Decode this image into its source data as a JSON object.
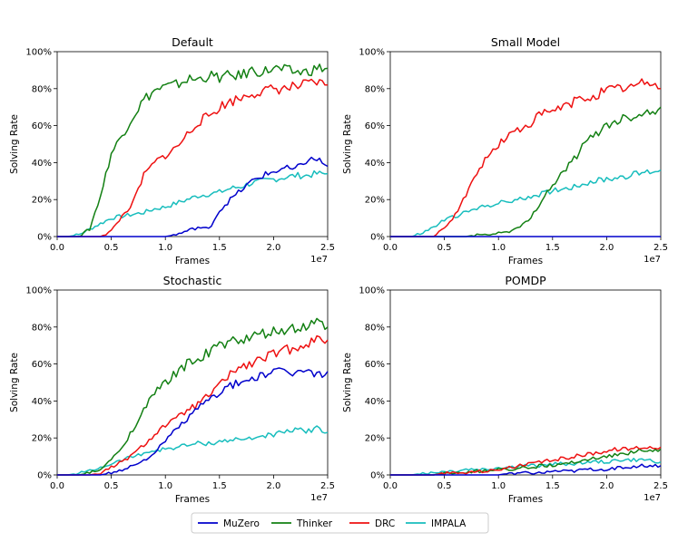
{
  "chart_data": [
    {
      "type": "line",
      "title": "Default",
      "xlabel": "Frames",
      "ylabel": "Solving Rate",
      "x_offset_label": "1e7",
      "xlim": [
        0.0,
        2.5
      ],
      "ylim": [
        0,
        100
      ],
      "xticks": [
        "0.0",
        "0.5",
        "1.0",
        "1.5",
        "2.0",
        "2.5"
      ],
      "yticks": [
        "0%",
        "20%",
        "40%",
        "60%",
        "80%",
        "100%"
      ],
      "x": [
        0.0,
        0.1,
        0.2,
        0.3,
        0.4,
        0.5,
        0.6,
        0.7,
        0.8,
        0.9,
        1.0,
        1.1,
        1.2,
        1.3,
        1.4,
        1.5,
        1.6,
        1.7,
        1.8,
        1.9,
        2.0,
        2.1,
        2.2,
        2.3,
        2.4,
        2.5
      ],
      "series": [
        {
          "name": "MuZero",
          "values": [
            0,
            0,
            0,
            0,
            0,
            0,
            0,
            0,
            0,
            0,
            0,
            1,
            3,
            5,
            4,
            14,
            20,
            25,
            30,
            33,
            35,
            37,
            36,
            41,
            42,
            38
          ]
        },
        {
          "name": "Thinker",
          "values": [
            0,
            0,
            0,
            4,
            22,
            45,
            55,
            65,
            74,
            79,
            81,
            82,
            85,
            85,
            87,
            86,
            87,
            87,
            90,
            89,
            91,
            90,
            89,
            89,
            91,
            91
          ]
        },
        {
          "name": "DRC",
          "values": [
            0,
            0,
            0,
            0,
            0,
            3,
            11,
            18,
            33,
            40,
            44,
            48,
            55,
            62,
            65,
            70,
            73,
            75,
            78,
            78,
            80,
            80,
            81,
            82,
            83,
            82
          ]
        },
        {
          "name": "IMPALA",
          "values": [
            0,
            0,
            1,
            4,
            7,
            10,
            11,
            12,
            13,
            15,
            16,
            18,
            20,
            22,
            23,
            24,
            26,
            27,
            29,
            30,
            31,
            32,
            33,
            33,
            34,
            34
          ]
        }
      ]
    },
    {
      "type": "line",
      "title": "Small Model",
      "xlabel": "Frames",
      "ylabel": "Solving Rate",
      "x_offset_label": "1e7",
      "xlim": [
        0.0,
        2.5
      ],
      "ylim": [
        0,
        100
      ],
      "xticks": [
        "0.0",
        "0.5",
        "1.0",
        "1.5",
        "2.0",
        "2.5"
      ],
      "yticks": [
        "0%",
        "20%",
        "40%",
        "60%",
        "80%",
        "100%"
      ],
      "x": [
        0.0,
        0.1,
        0.2,
        0.3,
        0.4,
        0.5,
        0.6,
        0.7,
        0.8,
        0.9,
        1.0,
        1.1,
        1.2,
        1.3,
        1.4,
        1.5,
        1.6,
        1.7,
        1.8,
        1.9,
        2.0,
        2.1,
        2.2,
        2.3,
        2.4,
        2.5
      ],
      "series": [
        {
          "name": "MuZero",
          "values": [
            0,
            0,
            0,
            0,
            0,
            0,
            0,
            0,
            0,
            0,
            0,
            0,
            0,
            0,
            0,
            0,
            0,
            0,
            0,
            0,
            0,
            0,
            0,
            0,
            0,
            0
          ]
        },
        {
          "name": "Thinker",
          "values": [
            0,
            0,
            0,
            0,
            0,
            0,
            0,
            0,
            1,
            1,
            2,
            3,
            5,
            10,
            20,
            28,
            35,
            42,
            50,
            56,
            60,
            63,
            65,
            66,
            68,
            70
          ]
        },
        {
          "name": "DRC",
          "values": [
            0,
            0,
            0,
            0,
            0,
            4,
            12,
            22,
            35,
            43,
            50,
            55,
            58,
            62,
            66,
            68,
            70,
            73,
            75,
            77,
            79,
            80,
            81,
            82,
            84,
            80
          ]
        },
        {
          "name": "IMPALA",
          "values": [
            0,
            0,
            0,
            2,
            5,
            9,
            11,
            13,
            15,
            17,
            18,
            19,
            20,
            22,
            23,
            25,
            26,
            27,
            29,
            30,
            31,
            32,
            33,
            34,
            35,
            36
          ]
        }
      ]
    },
    {
      "type": "line",
      "title": "Stochastic",
      "xlabel": "Frames",
      "ylabel": "Solving Rate",
      "x_offset_label": "1e7",
      "xlim": [
        0.0,
        2.5
      ],
      "ylim": [
        0,
        100
      ],
      "xticks": [
        "0.0",
        "0.5",
        "1.0",
        "1.5",
        "2.0",
        "2.5"
      ],
      "yticks": [
        "0%",
        "20%",
        "40%",
        "60%",
        "80%",
        "100%"
      ],
      "x": [
        0.0,
        0.1,
        0.2,
        0.3,
        0.4,
        0.5,
        0.6,
        0.7,
        0.8,
        0.9,
        1.0,
        1.1,
        1.2,
        1.3,
        1.4,
        1.5,
        1.6,
        1.7,
        1.8,
        1.9,
        2.0,
        2.1,
        2.2,
        2.3,
        2.4,
        2.5
      ],
      "series": [
        {
          "name": "MuZero",
          "values": [
            0,
            0,
            0,
            0,
            0,
            1,
            3,
            5,
            8,
            12,
            18,
            25,
            30,
            36,
            40,
            45,
            48,
            50,
            52,
            54,
            55,
            56,
            55,
            56,
            54,
            56
          ]
        },
        {
          "name": "Thinker",
          "values": [
            0,
            0,
            0,
            1,
            3,
            8,
            15,
            25,
            35,
            44,
            50,
            55,
            60,
            63,
            66,
            70,
            72,
            73,
            74,
            76,
            77,
            78,
            79,
            80,
            82,
            80
          ]
        },
        {
          "name": "DRC",
          "values": [
            0,
            0,
            0,
            0,
            1,
            4,
            7,
            11,
            16,
            22,
            27,
            30,
            35,
            38,
            43,
            48,
            55,
            58,
            60,
            63,
            65,
            67,
            69,
            71,
            73,
            73
          ]
        },
        {
          "name": "IMPALA",
          "values": [
            0,
            0,
            1,
            2,
            4,
            6,
            8,
            10,
            12,
            13,
            14,
            15,
            16,
            17,
            17,
            18,
            19,
            19,
            20,
            21,
            22,
            23,
            24,
            24,
            25,
            23
          ]
        }
      ]
    },
    {
      "type": "line",
      "title": "POMDP",
      "xlabel": "Frames",
      "ylabel": "Solving Rate",
      "x_offset_label": "1e7",
      "xlim": [
        0.0,
        2.5
      ],
      "ylim": [
        0,
        100
      ],
      "xticks": [
        "0.0",
        "0.5",
        "1.0",
        "1.5",
        "2.0",
        "2.5"
      ],
      "yticks": [
        "0%",
        "20%",
        "40%",
        "60%",
        "80%",
        "100%"
      ],
      "x": [
        0.0,
        0.1,
        0.2,
        0.3,
        0.4,
        0.5,
        0.6,
        0.7,
        0.8,
        0.9,
        1.0,
        1.1,
        1.2,
        1.3,
        1.4,
        1.5,
        1.6,
        1.7,
        1.8,
        1.9,
        2.0,
        2.1,
        2.2,
        2.3,
        2.4,
        2.5
      ],
      "series": [
        {
          "name": "MuZero",
          "values": [
            0,
            0,
            0,
            0,
            0,
            0,
            0,
            0,
            0,
            0,
            0,
            1,
            1,
            1,
            1,
            2,
            2,
            2,
            3,
            3,
            3,
            4,
            4,
            5,
            5,
            5
          ]
        },
        {
          "name": "Thinker",
          "values": [
            0,
            0,
            0,
            0,
            0,
            1,
            1,
            1,
            2,
            2,
            3,
            3,
            4,
            4,
            5,
            5,
            6,
            7,
            8,
            9,
            10,
            11,
            12,
            13,
            13,
            14
          ]
        },
        {
          "name": "DRC",
          "values": [
            0,
            0,
            0,
            0,
            0,
            1,
            1,
            1,
            2,
            2,
            3,
            4,
            5,
            6,
            7,
            8,
            9,
            10,
            11,
            12,
            13,
            14,
            14,
            15,
            15,
            15
          ]
        },
        {
          "name": "IMPALA",
          "values": [
            0,
            0,
            0,
            1,
            1,
            2,
            2,
            3,
            3,
            3,
            4,
            4,
            5,
            5,
            5,
            6,
            6,
            6,
            7,
            7,
            7,
            8,
            8,
            8,
            8,
            7
          ]
        }
      ]
    }
  ],
  "legend": {
    "placement": "bottom-center",
    "entries": [
      {
        "name": "MuZero",
        "color": "#0000cc"
      },
      {
        "name": "Thinker",
        "color": "#138013"
      },
      {
        "name": "DRC",
        "color": "#ee1111"
      },
      {
        "name": "IMPALA",
        "color": "#17bdbd"
      }
    ]
  }
}
